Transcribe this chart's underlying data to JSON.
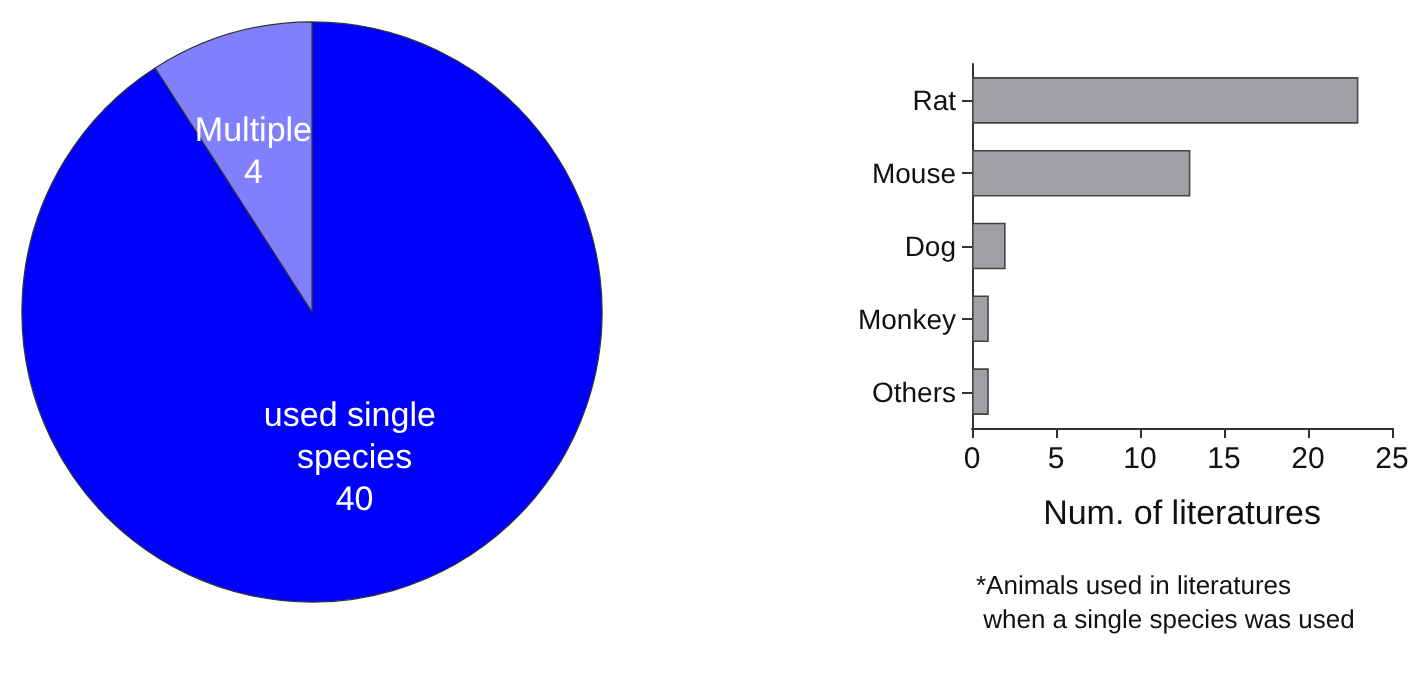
{
  "chart_data": [
    {
      "type": "pie",
      "categories": [
        "used single species",
        "Multiple"
      ],
      "values": [
        40,
        4
      ],
      "colors": [
        "#0000ff",
        "#8080ff"
      ],
      "data_labels": true
    },
    {
      "type": "bar",
      "orientation": "horizontal",
      "categories": [
        "Rat",
        "Mouse",
        "Dog",
        "Monkey",
        "Others"
      ],
      "values": [
        23,
        13,
        2,
        1,
        1
      ],
      "color": "#a0a0a4",
      "xlim": [
        0,
        25
      ],
      "xticks": [
        0,
        5,
        10,
        15,
        20,
        25
      ],
      "xlabel": "Num. of literatures",
      "annotations": [
        "*Animals used in literatures\n when a single species was used"
      ]
    }
  ]
}
